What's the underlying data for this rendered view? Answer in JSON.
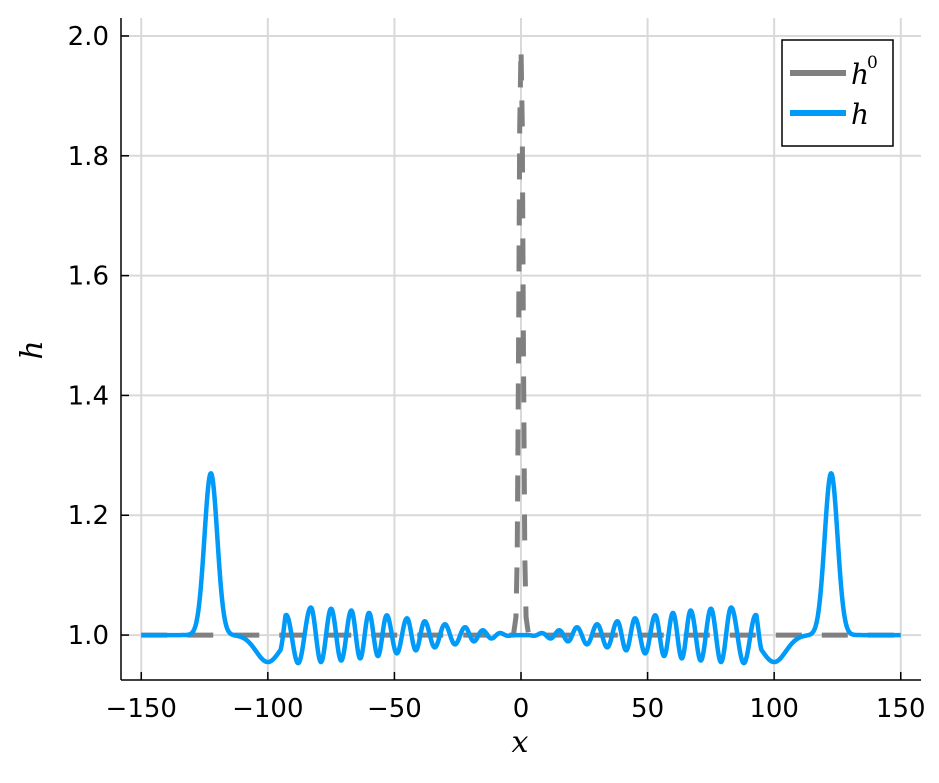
{
  "chart_data": {
    "type": "line",
    "title": "",
    "xlabel": "x",
    "ylabel": "h",
    "xlim": [
      -158,
      158
    ],
    "ylim": [
      0.925,
      2.03
    ],
    "xticks": [
      -150,
      -100,
      -50,
      0,
      50,
      100,
      150
    ],
    "xtick_labels": [
      "−150",
      "−100",
      "−50",
      "0",
      "50",
      "100",
      "150"
    ],
    "yticks": [
      1.0,
      1.2,
      1.4,
      1.6,
      1.8,
      2.0
    ],
    "ytick_labels": [
      "1.0",
      "1.2",
      "1.4",
      "1.6",
      "1.8",
      "2.0"
    ],
    "grid": true,
    "legend_position": "top-right",
    "series": [
      {
        "name": "h⁰",
        "legend_base": "h",
        "legend_sup": "0",
        "color": "#808080",
        "style": "dashed",
        "x": [
          -150,
          -3,
          -2,
          -1.5,
          -1,
          -0.5,
          0,
          0.5,
          1,
          1.5,
          2,
          3,
          150
        ],
        "y": [
          1.0,
          1.0,
          1.03,
          1.13,
          1.45,
          1.85,
          1.98,
          1.85,
          1.45,
          1.13,
          1.03,
          1.0,
          1.0
        ]
      },
      {
        "name": "h",
        "legend_base": "h",
        "legend_sup": "",
        "color": "#009af9",
        "style": "solid",
        "peaks": {
          "x": [
            -122.5,
            122.5
          ],
          "y": [
            1.27,
            1.27
          ]
        },
        "troughs": {
          "x": [
            -100,
            100
          ],
          "y": [
            0.955,
            0.955
          ]
        },
        "oscillation_extrema": {
          "x": [
            -93,
            -83,
            -75,
            -67,
            -60,
            -53,
            -45,
            -38,
            -30,
            -22,
            -15,
            15,
            22,
            30,
            38,
            45,
            53,
            60,
            67,
            75,
            83,
            93
          ],
          "y": [
            1.047,
            1.046,
            1.044,
            1.041,
            1.037,
            1.033,
            1.028,
            1.023,
            1.018,
            1.013,
            1.008,
            1.008,
            1.013,
            1.018,
            1.023,
            1.028,
            1.033,
            1.037,
            1.041,
            1.044,
            1.046,
            1.047
          ]
        }
      }
    ]
  }
}
